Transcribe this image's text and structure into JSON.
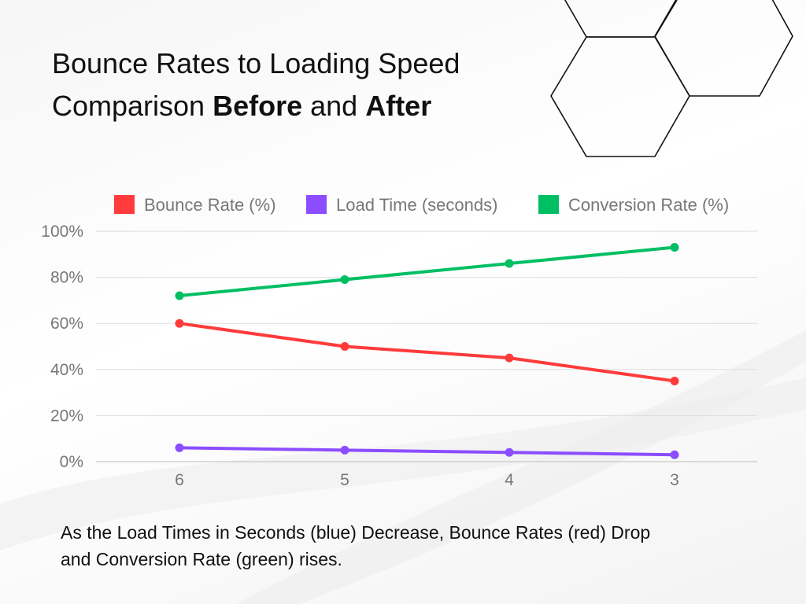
{
  "title": {
    "line1": "Bounce Rates to Loading Speed",
    "line2_prefix": "Comparison ",
    "line2_before": "Before",
    "line2_mid": " and ",
    "line2_after": "After"
  },
  "caption": {
    "line1": "As the Load Times in Seconds (blue) Decrease, Bounce Rates (red) Drop",
    "line2": "and Conversion Rate (green) rises."
  },
  "chart_data": {
    "type": "line",
    "title": "Bounce Rates to Loading Speed Comparison Before and After",
    "xlabel": "",
    "ylabel": "",
    "categories": [
      "6",
      "5",
      "4",
      "3"
    ],
    "y_ticks": [
      "0%",
      "20%",
      "40%",
      "60%",
      "80%",
      "100%"
    ],
    "ylim": [
      0,
      100
    ],
    "grid": true,
    "legend_position": "top",
    "series": [
      {
        "name": "Bounce Rate (%)",
        "color": "#ff3b3b",
        "values": [
          60,
          50,
          45,
          35
        ]
      },
      {
        "name": "Load Time (seconds)",
        "color": "#8b4dff",
        "values": [
          6,
          5,
          4,
          3
        ]
      },
      {
        "name": "Conversion Rate (%)",
        "color": "#00bf63",
        "values": [
          72,
          79,
          86,
          93
        ]
      }
    ]
  }
}
